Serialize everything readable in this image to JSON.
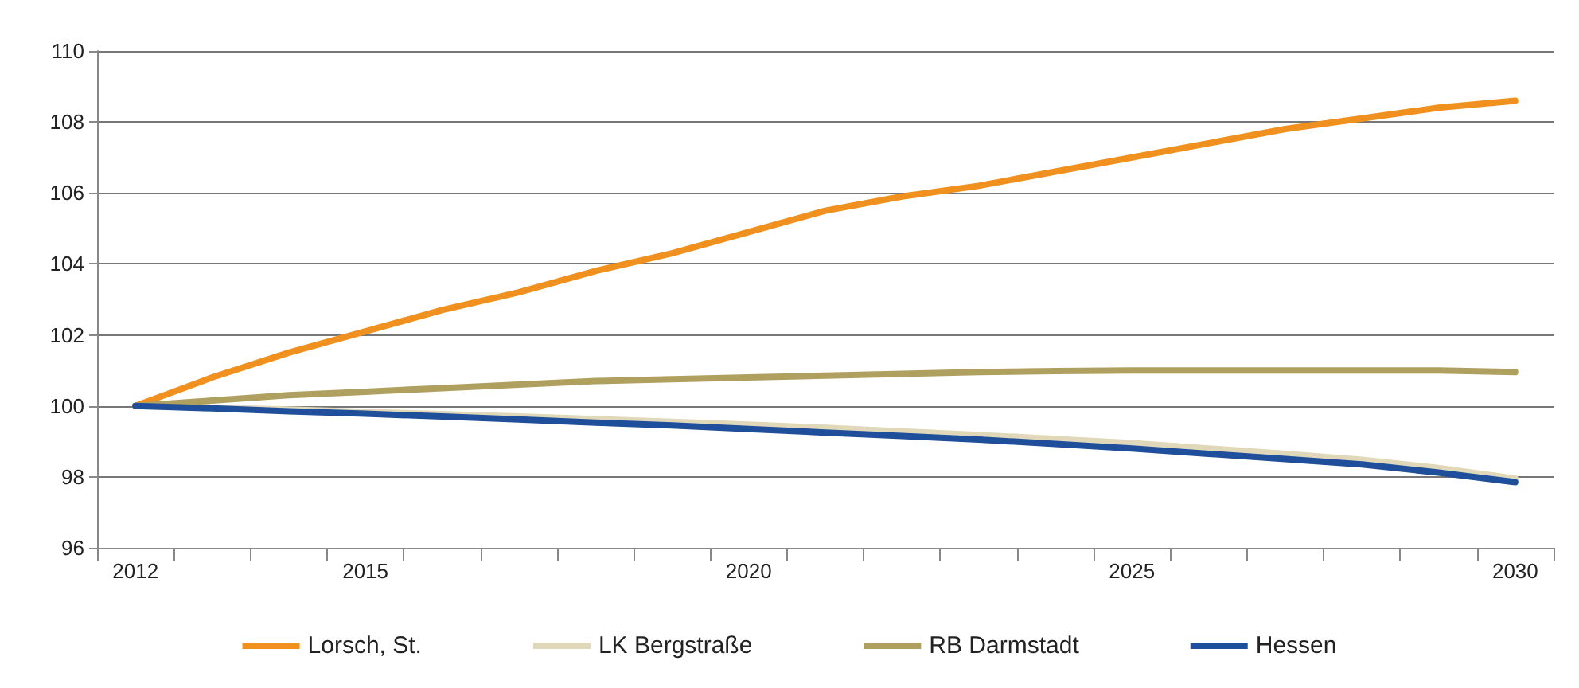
{
  "chart_data": {
    "type": "line",
    "categories": [
      "2012",
      null,
      null,
      "2015",
      null,
      null,
      null,
      null,
      "2020",
      null,
      null,
      null,
      null,
      "2025",
      null,
      null,
      null,
      null,
      "2030"
    ],
    "series": [
      {
        "name": "Lorsch, St.",
        "color": "#f0901e",
        "values": [
          100,
          100.8,
          101.5,
          102.1,
          102.7,
          103.2,
          103.8,
          104.3,
          104.9,
          105.5,
          105.9,
          106.2,
          106.6,
          107.0,
          107.4,
          107.8,
          108.1,
          108.4,
          108.6
        ]
      },
      {
        "name": "LK Bergstraße",
        "color": "#e0d8b8",
        "values": [
          100,
          99.95,
          99.9,
          99.83,
          99.77,
          99.7,
          99.63,
          99.55,
          99.47,
          99.38,
          99.28,
          99.18,
          99.07,
          98.95,
          98.8,
          98.65,
          98.48,
          98.25,
          97.95
        ]
      },
      {
        "name": "RB Darmstadt",
        "color": "#b0a060",
        "values": [
          100,
          100.15,
          100.3,
          100.4,
          100.5,
          100.6,
          100.7,
          100.75,
          100.8,
          100.85,
          100.9,
          100.95,
          100.98,
          101.0,
          101.0,
          101.0,
          101.0,
          101.0,
          100.95
        ]
      },
      {
        "name": "Hessen",
        "color": "#1f4e9a",
        "values": [
          100,
          99.93,
          99.85,
          99.78,
          99.7,
          99.62,
          99.53,
          99.45,
          99.35,
          99.25,
          99.15,
          99.05,
          98.93,
          98.8,
          98.65,
          98.5,
          98.35,
          98.12,
          97.85
        ]
      }
    ],
    "ylim": [
      96,
      110
    ],
    "yticks": [
      96,
      98,
      100,
      102,
      104,
      106,
      108,
      110
    ],
    "grid": "y",
    "legend": "bottom",
    "marker": "none",
    "line_style": "solid"
  }
}
